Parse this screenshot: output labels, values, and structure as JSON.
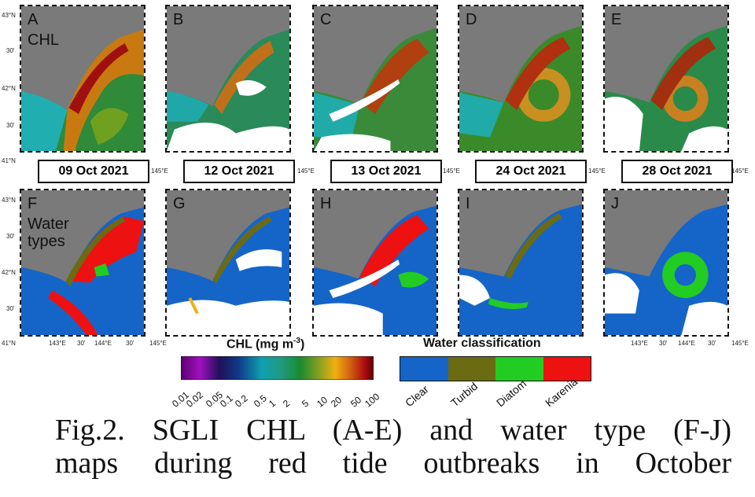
{
  "panels_top": [
    {
      "label": "A",
      "title": "CHL",
      "date": "09 Oct 2021"
    },
    {
      "label": "B",
      "title": "",
      "date": "12 Oct 2021"
    },
    {
      "label": "C",
      "title": "",
      "date": "13 Oct 2021"
    },
    {
      "label": "D",
      "title": "",
      "date": "24 Oct 2021"
    },
    {
      "label": "E",
      "title": "",
      "date": "28 Oct 2021"
    }
  ],
  "panels_bottom": [
    {
      "label": "F",
      "title_line1": "Water",
      "title_line2": "types"
    },
    {
      "label": "G"
    },
    {
      "label": "H"
    },
    {
      "label": "I"
    },
    {
      "label": "J"
    }
  ],
  "axes": {
    "lat_top": [
      "43°N",
      "30'",
      "42°N",
      "30'",
      "41°N"
    ],
    "lat_short": [
      "43°N",
      "30'",
      "42°N",
      "30'",
      "41°N"
    ],
    "lon_ticks": [
      "143°E",
      "30'",
      "144°E",
      "30'",
      "145°E"
    ],
    "lon_end": "145°E"
  },
  "chl_legend": {
    "title": "CHL (mg m",
    "title_sup": "-3",
    "title_end": ")",
    "ticks": [
      "0.01",
      "0.02",
      "0.05",
      "0.1",
      "0.2",
      "0.5",
      "1",
      "2",
      "5",
      "10",
      "20",
      "50",
      "100"
    ]
  },
  "water_legend": {
    "title": "Water classification",
    "classes": [
      {
        "name": "Clear",
        "color": "#1565c8"
      },
      {
        "name": "Turbid",
        "color": "#6b6b14"
      },
      {
        "name": "Diatom",
        "color": "#22cc22"
      },
      {
        "name": "Karenia",
        "color": "#ee1111"
      }
    ]
  },
  "caption": {
    "line1": "Fig.2. SGLI CHL (A-E) and water type (F-J)",
    "line2": "maps during red tide outbreaks in October"
  }
}
